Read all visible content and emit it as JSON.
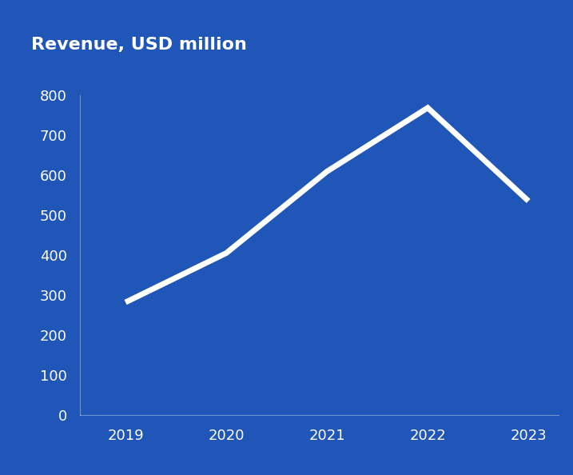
{
  "chart_data": {
    "type": "line",
    "title": "Revenue, USD million",
    "categories": [
      "2019",
      "2020",
      "2021",
      "2022",
      "2023"
    ],
    "values": [
      282,
      405,
      609,
      768,
      535
    ],
    "color": "#ffffff",
    "ylim": [
      0,
      800
    ],
    "yticks": [
      0,
      100,
      200,
      300,
      400,
      500,
      600,
      700,
      800
    ],
    "grid": false
  }
}
